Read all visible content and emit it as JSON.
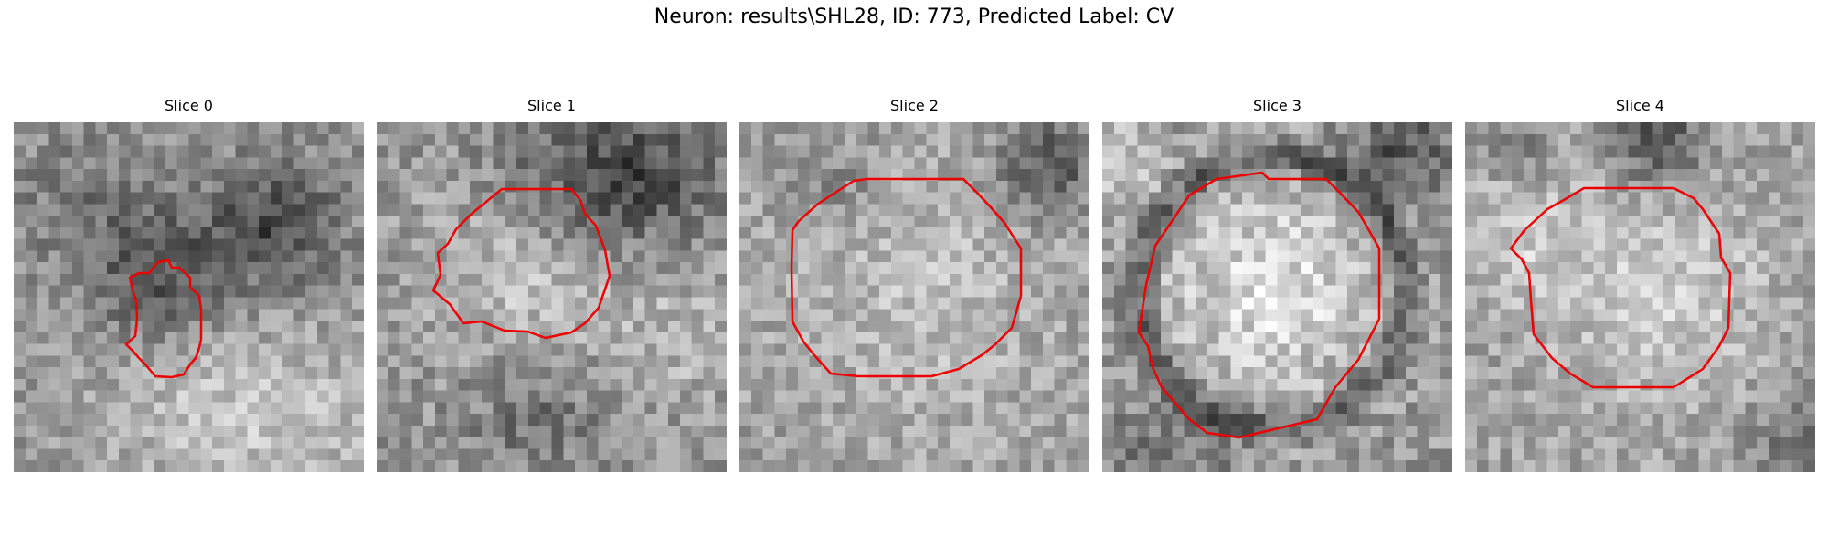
{
  "figure": {
    "suptitle": "Neuron: results\\SHL28, ID: 773, Predicted Label: CV",
    "panels": [
      {
        "title": "Slice 0"
      },
      {
        "title": "Slice 1"
      },
      {
        "title": "Slice 2"
      },
      {
        "title": "Slice 3"
      },
      {
        "title": "Slice 4"
      }
    ],
    "contour_color": "#ff0000",
    "colormap": "grayscale"
  }
}
